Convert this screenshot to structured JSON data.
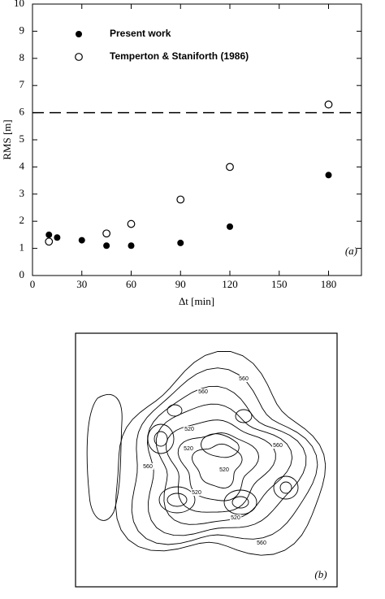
{
  "chart_data": [
    {
      "type": "scatter",
      "x_label": "Δt [min]",
      "y_label": "RMS [m]",
      "annotation": "(a)",
      "xlim": [
        0,
        200
      ],
      "ylim": [
        0,
        10
      ],
      "xticks": [
        0,
        30,
        60,
        90,
        120,
        150,
        180
      ],
      "yticks": [
        0,
        1,
        2,
        3,
        4,
        5,
        6,
        7,
        8,
        9,
        10
      ],
      "hline": 6,
      "legend": "upper left",
      "series": [
        {
          "name": "Present work",
          "color": "#000000",
          "marker": "filled",
          "x": [
            10,
            15,
            30,
            45,
            60,
            90,
            120,
            180
          ],
          "values": [
            1.5,
            1.4,
            1.3,
            1.1,
            1.1,
            1.2,
            1.8,
            3.7
          ]
        },
        {
          "name": "Temperton & Staniforth (1986)",
          "color": "#000000",
          "marker": "open",
          "x": [
            10,
            45,
            60,
            90,
            120,
            180
          ],
          "values": [
            1.25,
            1.55,
            1.9,
            2.8,
            4.0,
            6.3
          ]
        }
      ]
    },
    {
      "type": "contour",
      "annotation": "(b)",
      "contour_labels": [
        "560",
        "560",
        "560",
        "560",
        "520",
        "520",
        "520",
        "520",
        "520",
        "560"
      ]
    }
  ]
}
